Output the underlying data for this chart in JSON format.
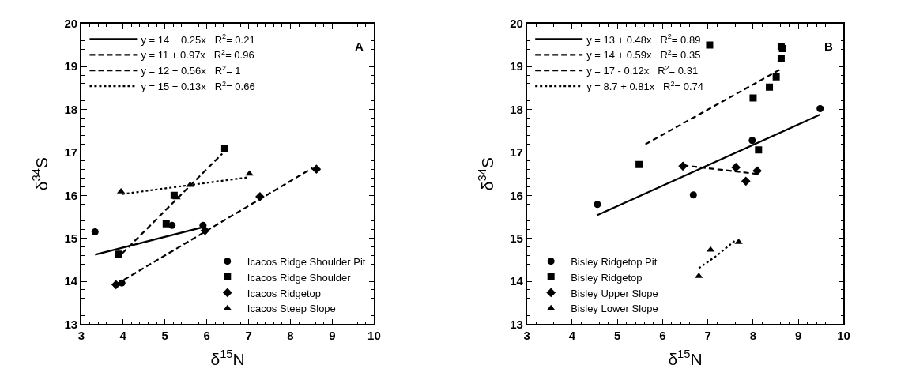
{
  "chart_data": [
    {
      "type": "scatter",
      "xlabel": "δ$^{15}$N",
      "ylabel": "δ$^{34}$S",
      "annotations": [
        "A"
      ],
      "xlim": [
        3,
        10
      ],
      "ylim": [
        13,
        20
      ],
      "xticks": [
        3,
        4,
        5,
        6,
        7,
        8,
        9,
        10
      ],
      "yticks": [
        13,
        14,
        15,
        16,
        17,
        18,
        19,
        20
      ],
      "legend": "bottom right",
      "series": [
        {
          "type": "line",
          "name": "y = 14 + 0.25x   R$^{2}$= 0.21",
          "color": "#000000",
          "line_style": "solid",
          "x": [
            3.33,
            5.91
          ],
          "values": [
            14.62,
            15.26
          ]
        },
        {
          "type": "line",
          "name": "y = 11 + 0.97x   R$^{2}$= 0.96",
          "color": "#000000",
          "line_style": "dashed",
          "x": [
            3.98,
            6.37
          ],
          "values": [
            14.65,
            16.97
          ]
        },
        {
          "type": "line",
          "name": "y = 12 + 0.56x   R$^{2}$= 1",
          "color": "#000000",
          "line_style": "dashed",
          "x": [
            3.84,
            8.53
          ],
          "values": [
            13.93,
            16.64
          ]
        },
        {
          "type": "line",
          "name": "y = 15 + 0.13x   R$^{2}$= 0.66",
          "color": "#000000",
          "line_style": "dotted",
          "x": [
            3.98,
            6.99
          ],
          "values": [
            16.03,
            16.42
          ]
        },
        {
          "name": "Icacos Ridge Shoulder Pit",
          "color": "#000000",
          "marker": "circle",
          "x": [
            3.33,
            3.97,
            5.17,
            5.91
          ],
          "values": [
            15.15,
            13.96,
            15.3,
            15.3
          ]
        },
        {
          "name": "Icacos Ridge Shoulder",
          "color": "#000000",
          "marker": "square",
          "x": [
            3.89,
            5.03,
            5.22,
            6.43
          ],
          "values": [
            14.63,
            15.34,
            16.0,
            17.09
          ]
        },
        {
          "name": "Icacos Ridgetop",
          "color": "#000000",
          "marker": "diamond",
          "x": [
            3.83,
            5.96,
            7.27,
            8.62
          ],
          "values": [
            13.92,
            15.18,
            15.97,
            16.61
          ]
        },
        {
          "name": "Icacos Steep Slope",
          "color": "#000000",
          "marker": "triangle",
          "x": [
            3.95,
            5.28,
            5.6,
            7.02
          ],
          "values": [
            16.09,
            15.95,
            16.24,
            16.5
          ]
        }
      ]
    },
    {
      "type": "scatter",
      "xlabel": "δ$^{15}$N",
      "ylabel": "δ$^{34}$S",
      "annotations": [
        "B"
      ],
      "xlim": [
        3,
        10
      ],
      "ylim": [
        13,
        20
      ],
      "xticks": [
        3,
        4,
        5,
        6,
        7,
        8,
        9,
        10
      ],
      "yticks": [
        13,
        14,
        15,
        16,
        17,
        18,
        19,
        20
      ],
      "legend": "bottom left",
      "series": [
        {
          "type": "line",
          "name": "y = 13 + 0.48x   R$^{2}$= 0.89",
          "color": "#000000",
          "line_style": "solid",
          "x": [
            4.56,
            9.48
          ],
          "values": [
            15.54,
            17.88
          ]
        },
        {
          "type": "line",
          "name": "y = 14 + 0.59x   R$^{2}$= 0.35",
          "color": "#000000",
          "line_style": "dashed",
          "x": [
            5.62,
            8.61
          ],
          "values": [
            17.19,
            18.94
          ]
        },
        {
          "type": "line",
          "name": "y = 17 - 0.12x   R$^{2}$= 0.31",
          "color": "#000000",
          "line_style": "dashed",
          "x": [
            6.45,
            8.07
          ],
          "values": [
            16.7,
            16.5
          ]
        },
        {
          "type": "line",
          "name": "y = 8.7 + 0.81x   R$^{2}$= 0.74",
          "color": "#000000",
          "line_style": "dotted",
          "x": [
            6.8,
            7.2,
            7.63
          ],
          "values": [
            14.3,
            14.6,
            14.97
          ]
        },
        {
          "name": "Bisley Ridgetop Pit",
          "color": "#000000",
          "marker": "circle",
          "x": [
            4.56,
            6.68,
            7.98,
            9.48
          ],
          "values": [
            15.79,
            16.01,
            17.28,
            18.02
          ]
        },
        {
          "name": "Bisley Ridgetop",
          "color": "#000000",
          "marker": "square",
          "x": [
            5.48,
            7.04,
            8.0,
            8.12,
            8.36,
            8.51,
            8.62,
            8.62,
            8.65
          ],
          "values": [
            16.72,
            19.5,
            18.27,
            17.06,
            18.52,
            18.76,
            19.18,
            19.47,
            19.42
          ]
        },
        {
          "name": "Bisley Upper Slope",
          "color": "#000000",
          "marker": "diamond",
          "x": [
            6.45,
            7.62,
            7.84,
            8.09
          ],
          "values": [
            16.68,
            16.65,
            16.33,
            16.57
          ]
        },
        {
          "name": "Bisley Lower Slope",
          "color": "#000000",
          "marker": "triangle",
          "x": [
            6.8,
            7.06,
            7.68
          ],
          "values": [
            14.12,
            14.73,
            14.91
          ]
        }
      ]
    }
  ]
}
